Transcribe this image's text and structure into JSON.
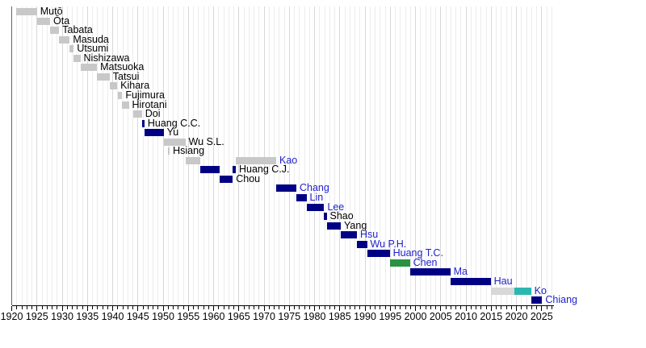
{
  "chart_data": {
    "type": "bar",
    "subtype": "timeline-gantt",
    "title": "",
    "description_visible_text_only": true,
    "x_axis": {
      "start_year": 1920,
      "end_year": 2027.5,
      "minor_tick_interval": 1,
      "major_tick_interval": 5,
      "tick_labels": [
        "1920",
        "1925",
        "1930",
        "1935",
        "1940",
        "1945",
        "1950",
        "1955",
        "1960",
        "1965",
        "1970",
        "1975",
        "1980",
        "1985",
        "1990",
        "1995",
        "2000",
        "2005",
        "2010",
        "2015",
        "2020",
        "2025"
      ]
    },
    "colors": {
      "bar_gray": "#c8c8c8",
      "bar_light_gray": "#d8d8d8",
      "bar_navy": "#000084",
      "bar_green": "#2a9142",
      "bar_teal": "#2ab7b0",
      "label_black": "#000000",
      "label_link_blue": "#2222cc",
      "grid_minor": "#ececec",
      "grid_major": "#d8d8d8",
      "axis": "#000000",
      "background": "#ffffff"
    },
    "rows": [
      {
        "label": "Mutō",
        "label_color": "black",
        "bars": [
          {
            "start": 1920.9,
            "end": 1925.0,
            "color": "gray"
          }
        ]
      },
      {
        "label": "Ōta",
        "label_color": "black",
        "bars": [
          {
            "start": 1925.0,
            "end": 1927.6,
            "color": "gray"
          }
        ]
      },
      {
        "label": "Tabata",
        "label_color": "black",
        "bars": [
          {
            "start": 1927.6,
            "end": 1929.4,
            "color": "gray"
          }
        ]
      },
      {
        "label": "Masuda",
        "label_color": "black",
        "bars": [
          {
            "start": 1929.4,
            "end": 1931.5,
            "color": "gray"
          }
        ]
      },
      {
        "label": "Utsumi",
        "label_color": "black",
        "bars": [
          {
            "start": 1931.5,
            "end": 1932.3,
            "color": "gray"
          }
        ]
      },
      {
        "label": "Nishizawa",
        "label_color": "black",
        "bars": [
          {
            "start": 1932.3,
            "end": 1933.6,
            "color": "gray"
          }
        ]
      },
      {
        "label": "Matsuoka",
        "label_color": "black",
        "bars": [
          {
            "start": 1933.6,
            "end": 1936.9,
            "color": "gray"
          }
        ]
      },
      {
        "label": "Tatsui",
        "label_color": "black",
        "bars": [
          {
            "start": 1936.9,
            "end": 1939.4,
            "color": "gray"
          }
        ]
      },
      {
        "label": "Kihara",
        "label_color": "black",
        "bars": [
          {
            "start": 1939.4,
            "end": 1940.9,
            "color": "gray"
          }
        ]
      },
      {
        "label": "Fujimura",
        "label_color": "black",
        "bars": [
          {
            "start": 1941.0,
            "end": 1941.9,
            "color": "gray"
          }
        ]
      },
      {
        "label": "Hirotani",
        "label_color": "black",
        "bars": [
          {
            "start": 1941.9,
            "end": 1943.2,
            "color": "gray"
          }
        ]
      },
      {
        "label": "Doi",
        "label_color": "black",
        "bars": [
          {
            "start": 1944.0,
            "end": 1945.8,
            "color": "gray"
          }
        ]
      },
      {
        "label": "Huang C.C.",
        "label_color": "black",
        "bars": [
          {
            "start": 1945.8,
            "end": 1946.3,
            "color": "navy"
          }
        ]
      },
      {
        "label": "Yu",
        "label_color": "black",
        "bars": [
          {
            "start": 1946.3,
            "end": 1950.1,
            "color": "navy"
          }
        ]
      },
      {
        "label": "Wu S.L.",
        "label_color": "black",
        "bars": [
          {
            "start": 1950.1,
            "end": 1954.4,
            "color": "gray"
          }
        ]
      },
      {
        "label": "Hsiang",
        "label_color": "black",
        "bars": [
          {
            "start": 1950.9,
            "end": 1951.3,
            "color": "gray"
          }
        ]
      },
      {
        "label": "Kao",
        "label_color": "blue",
        "bars": [
          {
            "start": 1954.5,
            "end": 1957.4,
            "color": "gray"
          },
          {
            "start": 1964.4,
            "end": 1972.4,
            "color": "gray"
          }
        ]
      },
      {
        "label": "Huang C.J.",
        "label_color": "black",
        "bars": [
          {
            "start": 1957.4,
            "end": 1961.2,
            "color": "navy"
          },
          {
            "start": 1963.8,
            "end": 1964.4,
            "color": "navy"
          }
        ]
      },
      {
        "label": "Chou",
        "label_color": "black",
        "bars": [
          {
            "start": 1961.2,
            "end": 1963.8,
            "color": "navy"
          }
        ]
      },
      {
        "label": "Chang",
        "label_color": "blue",
        "bars": [
          {
            "start": 1972.4,
            "end": 1976.4,
            "color": "navy"
          }
        ]
      },
      {
        "label": "Lin",
        "label_color": "blue",
        "bars": [
          {
            "start": 1976.4,
            "end": 1978.4,
            "color": "navy"
          }
        ]
      },
      {
        "label": "Lee",
        "label_color": "blue",
        "bars": [
          {
            "start": 1978.4,
            "end": 1981.9,
            "color": "navy"
          }
        ]
      },
      {
        "label": "Shao",
        "label_color": "black",
        "bars": [
          {
            "start": 1981.9,
            "end": 1982.4,
            "color": "navy"
          }
        ]
      },
      {
        "label": "Yang",
        "label_color": "black",
        "bars": [
          {
            "start": 1982.4,
            "end": 1985.2,
            "color": "navy"
          }
        ]
      },
      {
        "label": "Hsu",
        "label_color": "blue",
        "bars": [
          {
            "start": 1985.2,
            "end": 1988.4,
            "color": "navy"
          }
        ]
      },
      {
        "label": "Wu P.H.",
        "label_color": "blue",
        "bars": [
          {
            "start": 1988.4,
            "end": 1990.4,
            "color": "navy"
          }
        ]
      },
      {
        "label": "Huang T.C.",
        "label_color": "blue",
        "bars": [
          {
            "start": 1990.4,
            "end": 1994.9,
            "color": "navy"
          }
        ]
      },
      {
        "label": "Chen",
        "label_color": "blue",
        "bars": [
          {
            "start": 1994.9,
            "end": 1998.9,
            "color": "green"
          }
        ]
      },
      {
        "label": "Ma",
        "label_color": "blue",
        "bars": [
          {
            "start": 1998.9,
            "end": 2006.9,
            "color": "navy"
          }
        ]
      },
      {
        "label": "Hau",
        "label_color": "blue",
        "bars": [
          {
            "start": 2006.9,
            "end": 2014.9,
            "color": "navy"
          }
        ]
      },
      {
        "label": "Ko",
        "label_color": "blue",
        "bars": [
          {
            "start": 2014.9,
            "end": 2019.6,
            "color": "lightgray"
          },
          {
            "start": 2019.6,
            "end": 2022.9,
            "color": "teal"
          }
        ]
      },
      {
        "label": "Chiang",
        "label_color": "blue",
        "bars": [
          {
            "start": 2022.9,
            "end": 2025.1,
            "color": "navy"
          }
        ]
      }
    ]
  }
}
